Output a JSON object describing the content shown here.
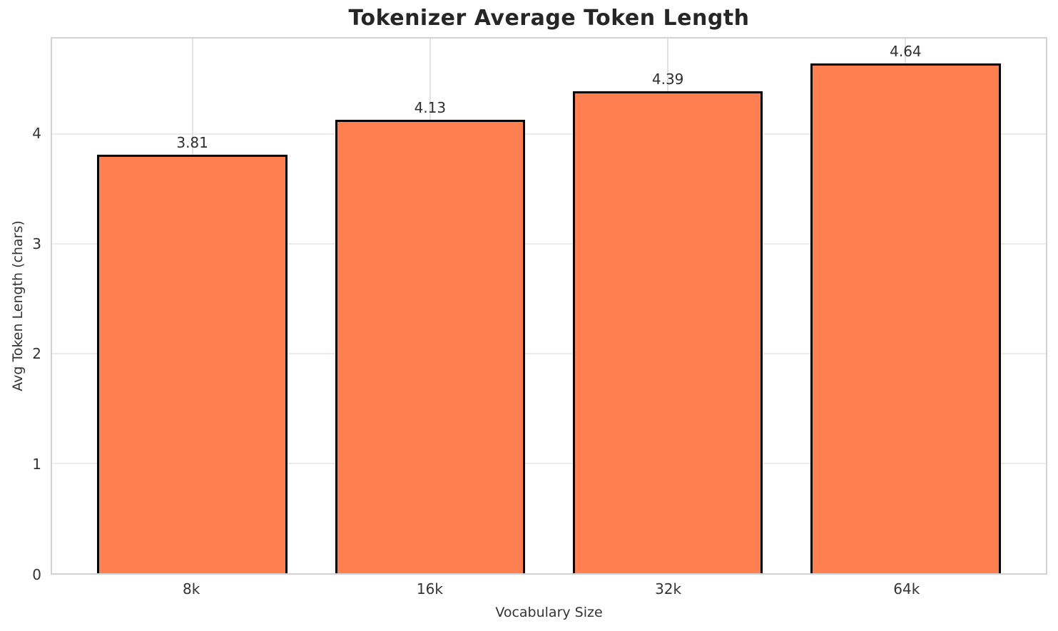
{
  "chart_data": {
    "type": "bar",
    "title": "Tokenizer Average Token Length",
    "categories": [
      "8k",
      "16k",
      "32k",
      "64k"
    ],
    "values": [
      3.81,
      4.13,
      4.39,
      4.64
    ],
    "value_labels": [
      "3.81",
      "4.13",
      "4.39",
      "4.64"
    ],
    "xlabel": "Vocabulary Size",
    "ylabel": "Avg Token Length (chars)",
    "ylim": [
      0,
      4.87
    ],
    "yticks": [
      0,
      1,
      2,
      3,
      4
    ],
    "ytick_labels": [
      "0",
      "1",
      "2",
      "3",
      "4"
    ],
    "xlim": [
      -0.59,
      3.59
    ],
    "bar_width": 0.8,
    "grid": "both",
    "legend": "none",
    "bar_color": "#FF7F50",
    "bar_edge_color": "#000000",
    "grid_color": "#ececec",
    "frame_color": "#d2d2d2"
  }
}
